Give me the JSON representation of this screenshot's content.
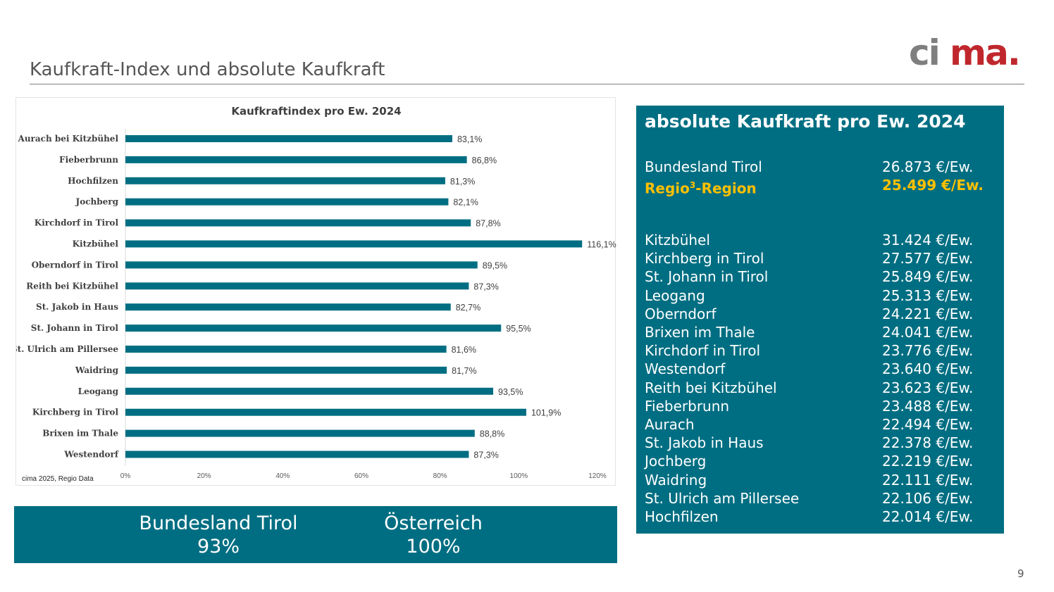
{
  "slide": {
    "title": "Kaufkraft-Index und absolute Kaufkraft",
    "page_number": "9",
    "logo": {
      "text": "cima.",
      "colors": {
        "ci": "#7f7f7f",
        "ma": "#c0272d"
      }
    }
  },
  "chart_data": {
    "type": "bar",
    "orientation": "horizontal",
    "title": "Kaufkraftindex pro Ew. 2024",
    "categories": [
      "Aurach bei Kitzbühel",
      "Fieberbrunn",
      "Hochfilzen",
      "Jochberg",
      "Kirchdorf in Tirol",
      "Kitzbühel",
      "Oberndorf in Tirol",
      "Reith bei Kitzbühel",
      "St. Jakob in Haus",
      "St. Johann in Tirol",
      "St. Ulrich am Pillersee",
      "Waidring",
      "Leogang",
      "Kirchberg in Tirol",
      "Brixen im Thale",
      "Westendorf"
    ],
    "values": [
      83.1,
      86.8,
      81.3,
      82.1,
      87.8,
      116.1,
      89.5,
      87.3,
      82.7,
      95.5,
      81.6,
      81.7,
      93.5,
      101.9,
      88.8,
      87.3
    ],
    "data_labels": [
      "83,1%",
      "86,8%",
      "81,3%",
      "82,1%",
      "87,8%",
      "116,1%",
      "89,5%",
      "87,3%",
      "82,7%",
      "95,5%",
      "81,6%",
      "81,7%",
      "93,5%",
      "101,9%",
      "88,8%",
      "87,3%"
    ],
    "x_ticks": [
      "0%",
      "20%",
      "40%",
      "60%",
      "80%",
      "100%",
      "120%"
    ],
    "xlim": [
      0,
      120
    ],
    "bar_color": "#006e82",
    "source": "cima 2025, Regio Data"
  },
  "bottom_band": {
    "items": [
      {
        "name": "Bundesland Tirol",
        "value": "93%"
      },
      {
        "name": "Österreich",
        "value": "100%"
      }
    ]
  },
  "panel": {
    "title": "absolute Kaufkraft pro Ew. 2024",
    "summary": [
      {
        "name": "Bundesland Tirol",
        "value": "26.873 €/Ew."
      },
      {
        "name_main": "Regio",
        "name_sup": "3",
        "name_rest": "-Region",
        "value": "25.499 €/Ew."
      }
    ],
    "rows": [
      {
        "name": "Kitzbühel",
        "value": "31.424 €/Ew."
      },
      {
        "name": "Kirchberg in Tirol",
        "value": "27.577 €/Ew."
      },
      {
        "name": "St. Johann in Tirol",
        "value": "25.849 €/Ew."
      },
      {
        "name": "Leogang",
        "value": "25.313 €/Ew."
      },
      {
        "name": "Oberndorf",
        "value": "24.221 €/Ew."
      },
      {
        "name": "Brixen im Thale",
        "value": "24.041 €/Ew."
      },
      {
        "name": "Kirchdorf in Tirol",
        "value": "23.776 €/Ew."
      },
      {
        "name": "Westendorf",
        "value": "23.640 €/Ew."
      },
      {
        "name": "Reith bei Kitzbühel",
        "value": "23.623 €/Ew."
      },
      {
        "name": "Fieberbrunn",
        "value": "23.488 €/Ew."
      },
      {
        "name": "Aurach",
        "value": "22.494 €/Ew."
      },
      {
        "name": "St. Jakob in Haus",
        "value": "22.378 €/Ew."
      },
      {
        "name": "Jochberg",
        "value": "22.219 €/Ew."
      },
      {
        "name": "Waidring",
        "value": "22.111 €/Ew."
      },
      {
        "name": "St. Ulrich am Pillersee",
        "value": "22.106 €/Ew."
      },
      {
        "name": "Hochfilzen",
        "value": "22.014 €/Ew."
      }
    ],
    "highlight_color": "#ffc000",
    "background": "#006e82"
  }
}
